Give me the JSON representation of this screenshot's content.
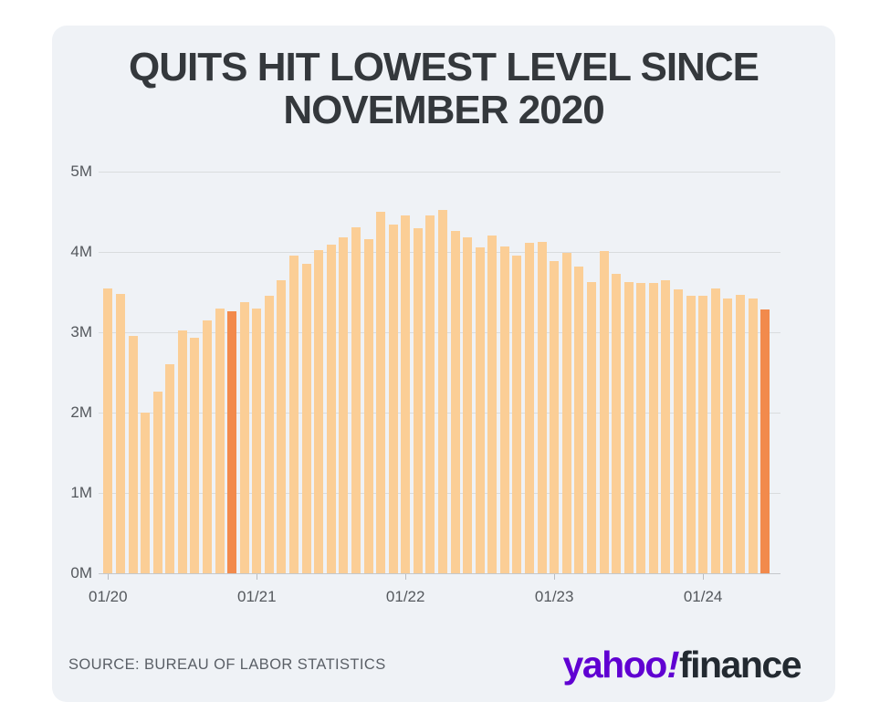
{
  "card": {
    "title_line1": "QUITS HIT LOWEST LEVEL SINCE",
    "title_line2": "NOVEMBER 2020",
    "source": "SOURCE: BUREAU OF LABOR STATISTICS",
    "logo": {
      "word1": "yahoo",
      "bang": "!",
      "word2": "finance",
      "purple": "#6001D2",
      "dark": "#232A31"
    }
  },
  "chart_data": {
    "type": "bar",
    "title": "QUITS HIT LOWEST LEVEL SINCE NOVEMBER 2020",
    "unit": "millions of quits per month",
    "x": [
      "01/20",
      "02/20",
      "03/20",
      "04/20",
      "05/20",
      "06/20",
      "07/20",
      "08/20",
      "09/20",
      "10/20",
      "11/20",
      "12/20",
      "01/21",
      "02/21",
      "03/21",
      "04/21",
      "05/21",
      "06/21",
      "07/21",
      "08/21",
      "09/21",
      "10/21",
      "11/21",
      "12/21",
      "01/22",
      "02/22",
      "03/22",
      "04/22",
      "05/22",
      "06/22",
      "07/22",
      "08/22",
      "09/22",
      "10/22",
      "11/22",
      "12/22",
      "01/23",
      "02/23",
      "03/23",
      "04/23",
      "05/23",
      "06/23",
      "07/23",
      "08/23",
      "09/23",
      "10/23",
      "11/23",
      "12/23",
      "01/24",
      "02/24",
      "03/24",
      "04/24",
      "05/24",
      "06/24"
    ],
    "values": [
      3.55,
      3.48,
      2.95,
      2.0,
      2.26,
      2.6,
      3.02,
      2.93,
      3.15,
      3.3,
      3.26,
      3.38,
      3.3,
      3.45,
      3.65,
      3.95,
      3.85,
      4.02,
      4.09,
      4.18,
      4.31,
      4.16,
      4.5,
      4.34,
      4.46,
      4.3,
      4.45,
      4.52,
      4.26,
      4.18,
      4.06,
      4.21,
      4.07,
      3.96,
      4.11,
      4.12,
      3.89,
      3.99,
      3.82,
      3.63,
      4.01,
      3.73,
      3.63,
      3.61,
      3.61,
      3.65,
      3.54,
      3.45,
      3.46,
      3.55,
      3.42,
      3.47,
      3.42,
      3.28
    ],
    "highlight_indices": [
      10,
      53
    ],
    "highlighted_months": [
      "11/20",
      "06/24"
    ],
    "bar_color": "#FBCE96",
    "highlight_color": "#F28A4C",
    "ylim": [
      0,
      5
    ],
    "y_tick_labels": [
      "0M",
      "1M",
      "2M",
      "3M",
      "4M",
      "5M"
    ],
    "x_tick_labels": [
      "01/20",
      "01/21",
      "01/22",
      "01/23",
      "01/24"
    ],
    "x_tick_indices": [
      0,
      12,
      24,
      36,
      48
    ],
    "grid": true,
    "legend": "none"
  }
}
